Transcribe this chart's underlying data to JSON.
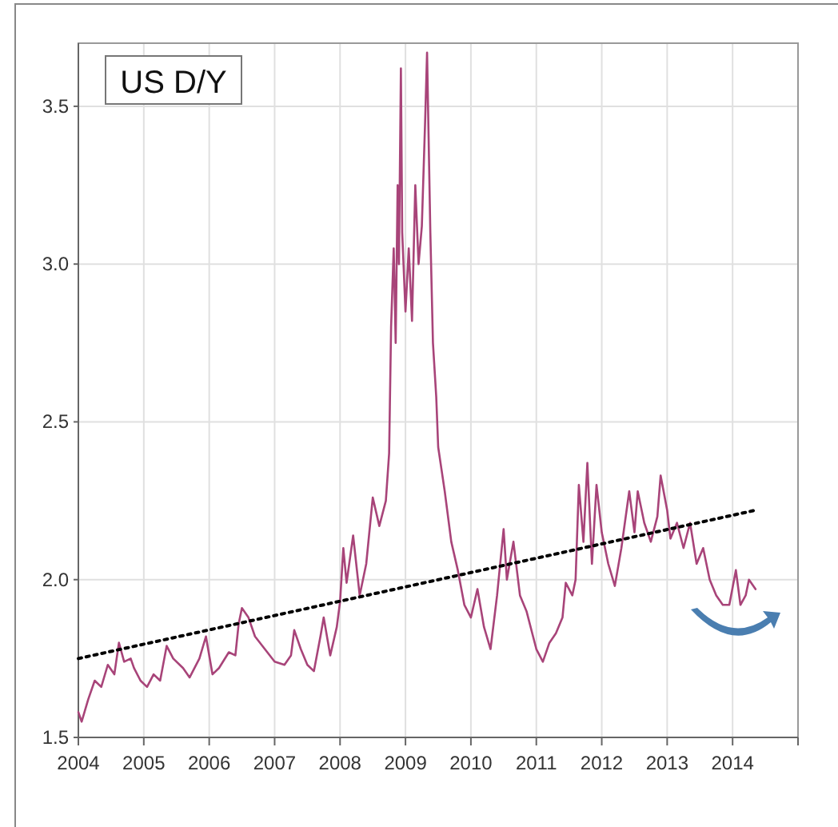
{
  "chart_data": {
    "type": "line",
    "title": "US D/Y",
    "xlim": [
      2004,
      2015
    ],
    "ylim": [
      1.5,
      3.7
    ],
    "xticks": [
      2004,
      2005,
      2006,
      2007,
      2008,
      2009,
      2010,
      2011,
      2012,
      2013,
      2014,
      {
        "value": 2015,
        "label": null
      }
    ],
    "yticks": [
      1.5,
      {
        "value": 2,
        "label": "2.0"
      },
      2.5,
      {
        "value": 3,
        "label": "3.0"
      },
      3.5
    ],
    "grid": true,
    "series": [
      {
        "color": "#a84479",
        "x": [
          2004,
          2004.05,
          2004.15,
          2004.25,
          2004.35,
          2004.45,
          2004.55,
          2004.62,
          2004.7,
          2004.8,
          2004.85,
          2004.95,
          2005.05,
          2005.15,
          2005.25,
          2005.35,
          2005.45,
          2005.6,
          2005.7,
          2005.85,
          2005.95,
          2006.05,
          2006.15,
          2006.3,
          2006.4,
          2006.45,
          2006.5,
          2006.6,
          2006.7,
          2006.85,
          2007,
          2007.15,
          2007.25,
          2007.3,
          2007.4,
          2007.5,
          2007.6,
          2007.7,
          2007.75,
          2007.85,
          2007.95,
          2008,
          2008.05,
          2008.1,
          2008.2,
          2008.3,
          2008.4,
          2008.5,
          2008.6,
          2008.7,
          2008.75,
          2008.78,
          2008.82,
          2008.85,
          2008.88,
          2008.9,
          2008.93,
          2008.95,
          2009,
          2009.05,
          2009.1,
          2009.15,
          2009.2,
          2009.25,
          2009.3,
          2009.33,
          2009.38,
          2009.42,
          2009.47,
          2009.5,
          2009.55,
          2009.6,
          2009.7,
          2009.8,
          2009.9,
          2010,
          2010.1,
          2010.2,
          2010.3,
          2010.4,
          2010.5,
          2010.55,
          2010.65,
          2010.75,
          2010.85,
          2010.95,
          2011,
          2011.1,
          2011.2,
          2011.3,
          2011.4,
          2011.45,
          2011.55,
          2011.6,
          2011.65,
          2011.72,
          2011.78,
          2011.85,
          2011.92,
          2012,
          2012.1,
          2012.2,
          2012.3,
          2012.42,
          2012.5,
          2012.55,
          2012.65,
          2012.75,
          2012.85,
          2012.9,
          2013,
          2013.05,
          2013.15,
          2013.25,
          2013.35,
          2013.45,
          2013.55,
          2013.65,
          2013.75,
          2013.85,
          2013.95,
          2014.05,
          2014.12,
          2014.2,
          2014.25,
          2014.35
        ],
        "values": [
          1.58,
          1.55,
          1.62,
          1.68,
          1.66,
          1.73,
          1.7,
          1.8,
          1.74,
          1.75,
          1.72,
          1.68,
          1.66,
          1.7,
          1.68,
          1.79,
          1.75,
          1.72,
          1.69,
          1.75,
          1.82,
          1.7,
          1.72,
          1.77,
          1.76,
          1.86,
          1.91,
          1.88,
          1.82,
          1.78,
          1.74,
          1.73,
          1.76,
          1.84,
          1.78,
          1.73,
          1.71,
          1.82,
          1.88,
          1.76,
          1.85,
          1.93,
          2.1,
          1.99,
          2.14,
          1.95,
          2.05,
          2.26,
          2.17,
          2.25,
          2.4,
          2.8,
          3.05,
          2.75,
          3.25,
          3.0,
          3.62,
          3.1,
          2.85,
          3.05,
          2.82,
          3.25,
          3.0,
          3.12,
          3.45,
          3.67,
          3.1,
          2.75,
          2.58,
          2.42,
          2.35,
          2.28,
          2.12,
          2.03,
          1.92,
          1.88,
          1.97,
          1.85,
          1.78,
          1.95,
          2.16,
          2.0,
          2.12,
          1.95,
          1.9,
          1.82,
          1.78,
          1.74,
          1.8,
          1.83,
          1.88,
          1.99,
          1.95,
          2.0,
          2.3,
          2.12,
          2.37,
          2.05,
          2.3,
          2.15,
          2.05,
          1.98,
          2.1,
          2.28,
          2.15,
          2.28,
          2.18,
          2.12,
          2.2,
          2.33,
          2.22,
          2.13,
          2.18,
          2.1,
          2.18,
          2.05,
          2.1,
          2.0,
          1.95,
          1.92,
          1.92,
          2.03,
          1.92,
          1.95,
          2.0,
          1.97
        ]
      },
      {
        "type": "line",
        "color": "#000000",
        "line_style": "dotted",
        "x": [
          2004,
          2014.35
        ],
        "values": [
          1.75,
          2.22
        ]
      }
    ]
  }
}
